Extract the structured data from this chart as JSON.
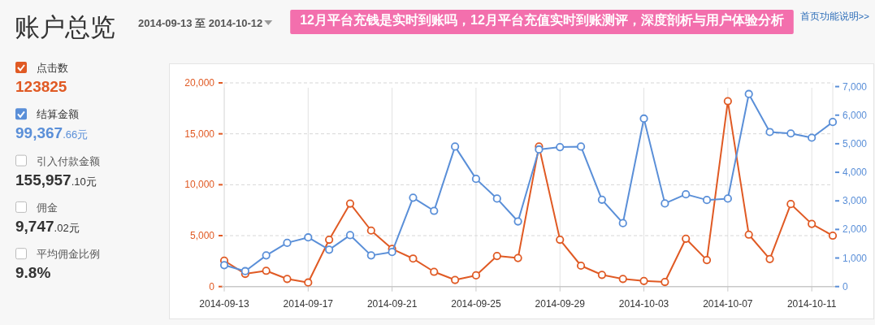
{
  "chart_data": [
    {
      "type": "other",
      "title": "账户总览",
      "subtitle": "2014-09-13 至 2014-10-12",
      "annotations": [
        "首页功能说明>>",
        "123825",
        "99,367.66元",
        "引入付款金额",
        "155,957.10元",
        "佣金",
        "9,747.02元",
        "平均佣金比例",
        "9.8%"
      ]
    },
    {
      "type": "line",
      "title": "12月平台充钱是实时到账吗，12月平台充值实时到账测评，深度剖析与用户体验分析",
      "x": [
        "2014-09-13",
        "2014-09-14",
        "2014-09-15",
        "2014-09-16",
        "2014-09-17",
        "2014-09-18",
        "2014-09-19",
        "2014-09-20",
        "2014-09-21",
        "2014-09-22",
        "2014-09-23",
        "2014-09-24",
        "2014-09-25",
        "2014-09-26",
        "2014-09-27",
        "2014-09-28",
        "2014-09-29",
        "2014-09-30",
        "2014-10-01",
        "2014-10-02",
        "2014-10-03",
        "2014-10-04",
        "2014-10-05",
        "2014-10-06",
        "2014-10-07",
        "2014-10-08",
        "2014-10-09",
        "2014-10-10",
        "2014-10-11",
        "2014-10-12"
      ],
      "series": [
        {
          "name": "点击数",
          "color": "#e05a24",
          "values": [
            2550,
            1250,
            1550,
            750,
            400,
            4600,
            8150,
            5500,
            3700,
            2750,
            1450,
            650,
            1100,
            3000,
            2800,
            13750,
            4600,
            2050,
            1150,
            750,
            550,
            450,
            4700,
            2600,
            18200,
            5100,
            2700,
            8100,
            6150,
            5000
          ]
        },
        {
          "name": "结算金额",
          "color": "#5a8fd8",
          "axis": "y2",
          "values": [
            750,
            540,
            1090,
            1530,
            1720,
            1290,
            1800,
            1090,
            1210,
            3110,
            2650,
            4900,
            3770,
            3080,
            2280,
            4800,
            4880,
            4900,
            3040,
            2220,
            5880,
            2910,
            3230,
            3030,
            3080,
            6740,
            5410,
            5360,
            5210,
            5760
          ]
        }
      ],
      "xlim": [
        "2014-09-13",
        "2014-10-12"
      ],
      "xticks": [
        "2014-09-13",
        "2014-09-17",
        "2014-09-21",
        "2014-09-25",
        "2014-09-29",
        "2014-10-03",
        "2014-10-07",
        "2014-10-11"
      ],
      "ylim": [
        0,
        20000
      ],
      "yticks": [
        0,
        {
          "value": 5000,
          "label": "5,000"
        },
        {
          "value": 10000,
          "label": "10,000"
        },
        {
          "value": 15000,
          "label": "15,000"
        },
        {
          "value": 20000,
          "label": "20,000"
        }
      ],
      "y2lim": [
        0,
        7130
      ],
      "y2ticks": [
        0,
        {
          "value": 1000,
          "label": "1,000"
        },
        {
          "value": 2000,
          "label": "2,000"
        },
        {
          "value": 3000,
          "label": "3,000"
        },
        {
          "value": 4000,
          "label": "4,000"
        },
        {
          "value": 5000,
          "label": "5,000"
        },
        {
          "value": 6000,
          "label": "6,000"
        },
        {
          "value": 7000,
          "label": "7,000"
        }
      ],
      "grid": true,
      "legend": "left",
      "marker": "circle",
      "line_style": "solid"
    }
  ]
}
